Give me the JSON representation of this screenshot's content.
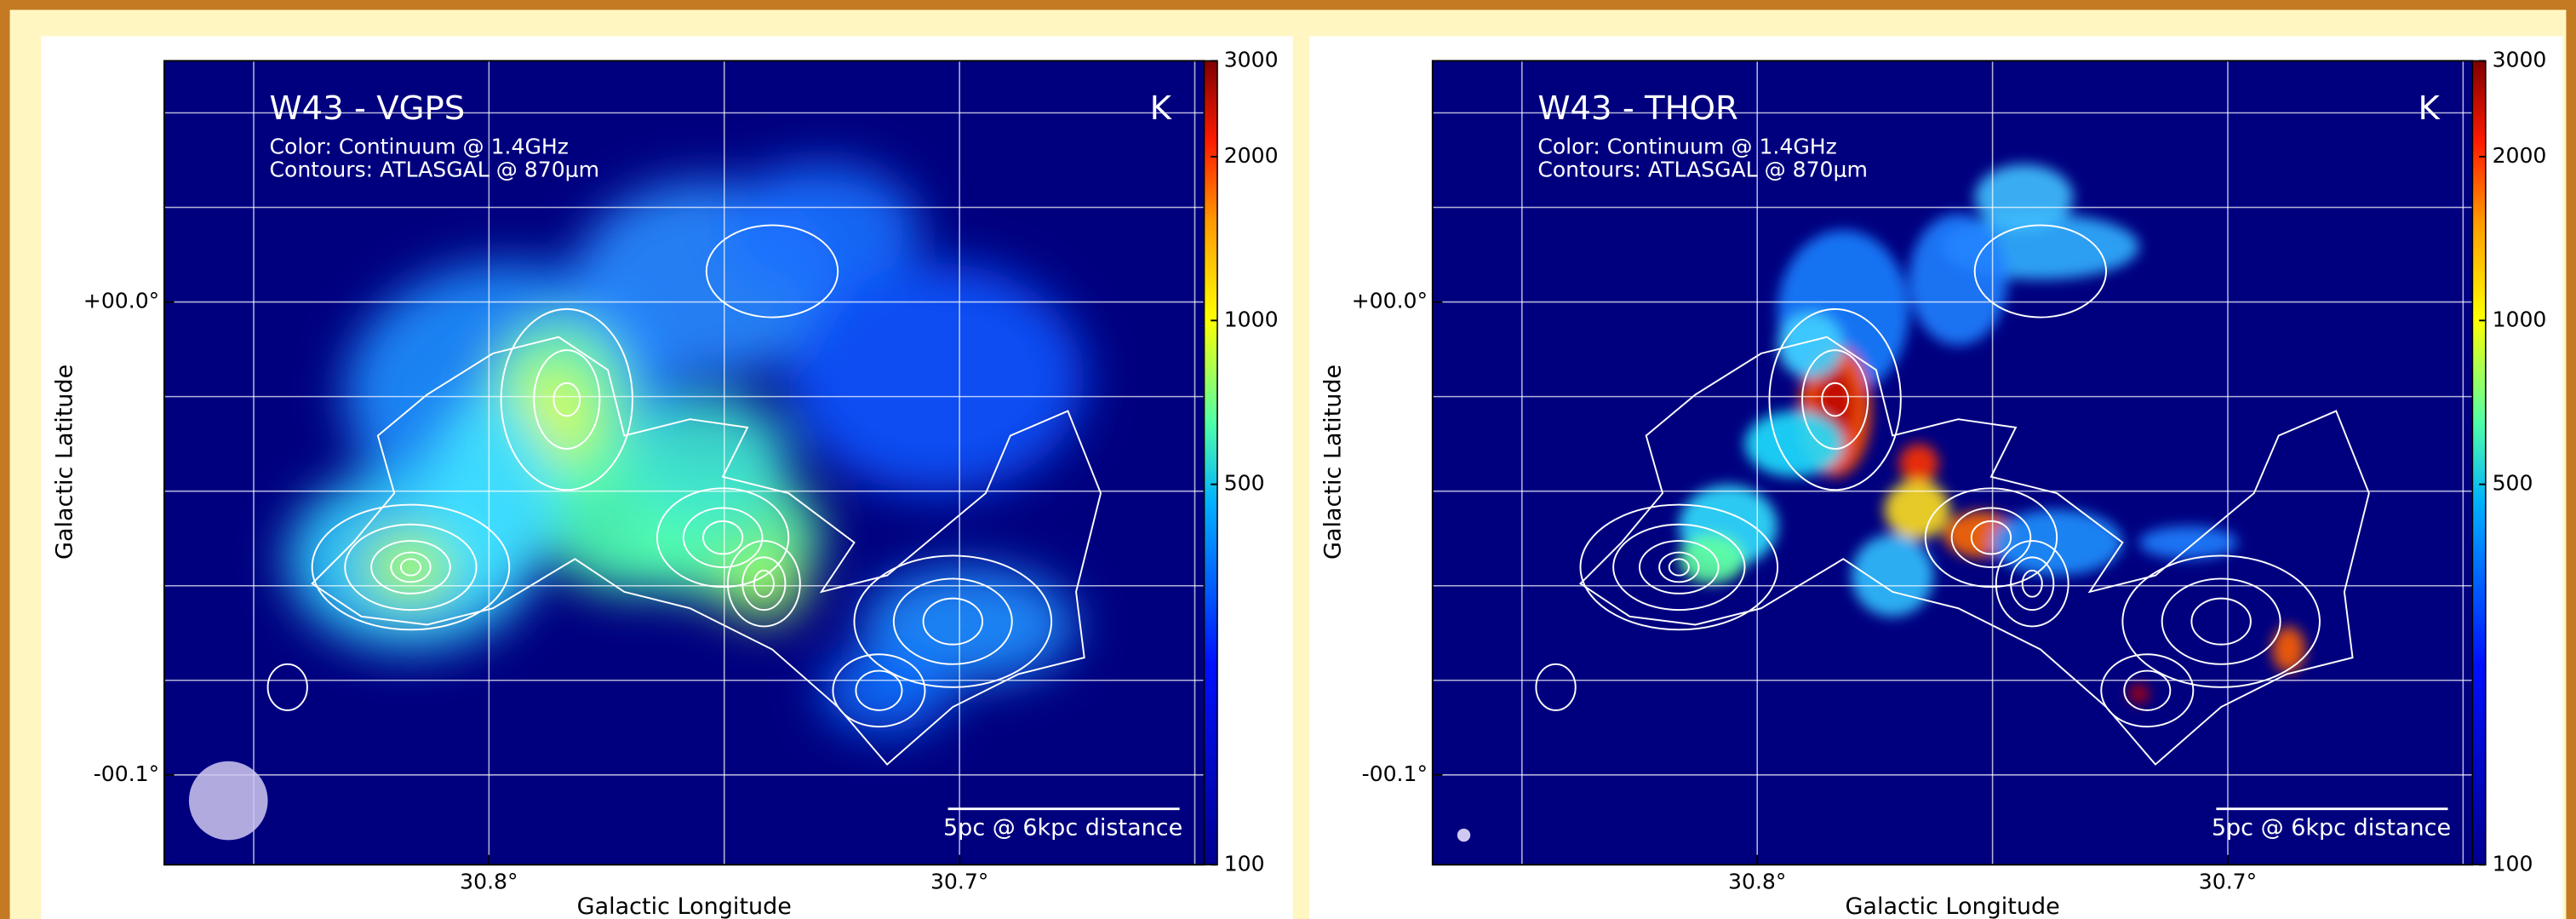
{
  "panels": [
    {
      "title": "W43 - VGPS",
      "color_note": "Color: Continuum @ 1.4GHz",
      "contour_note": "Contours: ATLASGAL @ 870μm",
      "unit": "K",
      "scale_bar": "5pc @ 6kpc distance",
      "xlabel": "Galactic Longitude",
      "ylabel": "Galactic Latitude",
      "xlim": [
        30.869,
        30.648
      ],
      "ylim": [
        -0.119,
        0.051
      ],
      "xticks": [
        {
          "value": 30.8,
          "label": "30.8°"
        },
        {
          "value": 30.7,
          "label": "30.7°"
        }
      ],
      "yticks": [
        {
          "value": 0,
          "label": "+00.0°"
        },
        {
          "value": -0.1,
          "label": "-00.1°"
        }
      ],
      "xgrid": [
        30.85,
        30.8,
        30.75,
        30.7,
        30.65
      ],
      "ygrid": [
        0.04,
        0.02,
        0,
        -0.02,
        -0.04,
        -0.06,
        -0.08,
        -0.1
      ],
      "colorbar": {
        "lim": [
          100,
          3000
        ],
        "log": true,
        "ticks": [
          3000,
          2000,
          1000,
          500,
          100
        ]
      }
    },
    {
      "title": "W43 - THOR",
      "color_note": "Color: Continuum @ 1.4GHz",
      "contour_note": "Contours: ATLASGAL @ 870μm",
      "unit": "K",
      "scale_bar": "5pc @ 6kpc distance",
      "xlabel": "Galactic Longitude",
      "ylabel": "Galactic Latitude",
      "xlim": [
        30.869,
        30.648
      ],
      "ylim": [
        -0.119,
        0.051
      ],
      "xticks": [
        {
          "value": 30.8,
          "label": "30.8°"
        },
        {
          "value": 30.7,
          "label": "30.7°"
        }
      ],
      "yticks": [
        {
          "value": 0,
          "label": "+00.0°"
        },
        {
          "value": -0.1,
          "label": "-00.1°"
        }
      ],
      "xgrid": [
        30.85,
        30.8,
        30.75,
        30.7,
        30.65
      ],
      "ygrid": [
        0.04,
        0.02,
        0,
        -0.02,
        -0.04,
        -0.06,
        -0.08,
        -0.1
      ],
      "colorbar": {
        "lim": [
          100,
          3000
        ],
        "log": true,
        "ticks": [
          3000,
          2000,
          1000,
          500,
          100
        ]
      }
    }
  ]
}
